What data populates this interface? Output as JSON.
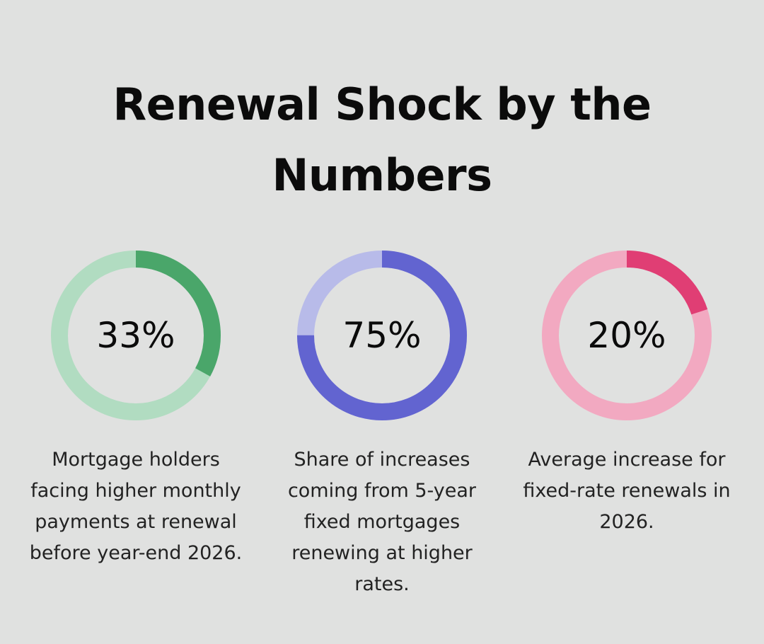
{
  "title": "Renewal Shock by the Numbers",
  "chart_data": [
    {
      "type": "pie",
      "value_label": "33%",
      "value": 33,
      "description": "Mortgage holders facing higher monthly payments at renewal before year-end 2026.",
      "colors": {
        "filled": "#4aa66a",
        "track": "#b1dcc1"
      }
    },
    {
      "type": "pie",
      "value_label": "75%",
      "value": 75,
      "description": "Share of increases coming from 5-year fixed mortgages renewing at higher rates.",
      "colors": {
        "filled": "#6264d0",
        "track": "#b8bbe9"
      }
    },
    {
      "type": "pie",
      "value_label": "20%",
      "value": 20,
      "description": "Average increase for fixed-rate renewals in 2026.",
      "colors": {
        "filled": "#e03e74",
        "track": "#f2a9c1"
      }
    }
  ]
}
